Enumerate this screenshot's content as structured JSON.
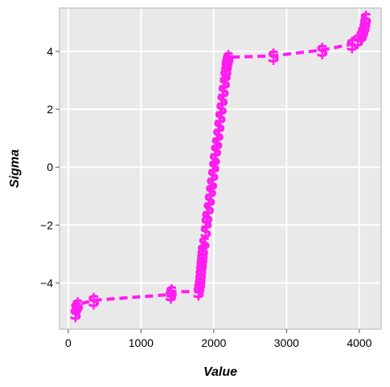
{
  "chart_data": {
    "type": "scatter",
    "title": "",
    "xlabel": "Value",
    "ylabel": "Sigma",
    "xlim": [
      -120,
      4300
    ],
    "ylim": [
      -5.6,
      5.5
    ],
    "xticks": [
      0,
      1000,
      2000,
      3000,
      4000
    ],
    "yticks": [
      -4,
      -2,
      0,
      2,
      4
    ],
    "xtick_labels": [
      "0",
      "1000",
      "2000",
      "3000",
      "4000"
    ],
    "ytick_labels": [
      "−4",
      "−2",
      "0",
      "2",
      "4"
    ],
    "grid": true,
    "marker": "$",
    "color": "#ff1cf0",
    "background": "#e9e9e9",
    "series": [
      {
        "points": [
          [
            100,
            -5.05
          ],
          [
            110,
            -4.85
          ],
          [
            130,
            -4.75
          ],
          [
            350,
            -4.6
          ],
          [
            1410,
            -4.4
          ],
          [
            1420,
            -4.3
          ],
          [
            1790,
            -4.3
          ],
          [
            1800,
            -4.15
          ],
          [
            1810,
            -4.0
          ],
          [
            1815,
            -3.85
          ],
          [
            1820,
            -3.7
          ],
          [
            1825,
            -3.55
          ],
          [
            1830,
            -3.4
          ],
          [
            1835,
            -3.3
          ],
          [
            1840,
            -3.15
          ],
          [
            1845,
            -3.0
          ],
          [
            1850,
            -2.85
          ],
          [
            1870,
            -2.6
          ],
          [
            1890,
            -2.2
          ],
          [
            1900,
            -1.9
          ],
          [
            1910,
            -1.7
          ],
          [
            1930,
            -1.4
          ],
          [
            1945,
            -1.1
          ],
          [
            1960,
            -0.8
          ],
          [
            1975,
            -0.55
          ],
          [
            1990,
            -0.25
          ],
          [
            2005,
            0.05
          ],
          [
            2015,
            0.3
          ],
          [
            2030,
            0.6
          ],
          [
            2045,
            0.85
          ],
          [
            2060,
            1.15
          ],
          [
            2075,
            1.45
          ],
          [
            2090,
            1.75
          ],
          [
            2105,
            2.05
          ],
          [
            2120,
            2.35
          ],
          [
            2135,
            2.65
          ],
          [
            2150,
            2.95
          ],
          [
            2160,
            3.2
          ],
          [
            2170,
            3.35
          ],
          [
            2175,
            3.5
          ],
          [
            2180,
            3.6
          ],
          [
            2190,
            3.7
          ],
          [
            2200,
            3.8
          ],
          [
            2820,
            3.85
          ],
          [
            3490,
            4.05
          ],
          [
            3900,
            4.25
          ],
          [
            3980,
            4.4
          ],
          [
            4030,
            4.55
          ],
          [
            4050,
            4.7
          ],
          [
            4070,
            4.85
          ],
          [
            4080,
            5.0
          ],
          [
            4090,
            5.15
          ]
        ]
      }
    ]
  }
}
